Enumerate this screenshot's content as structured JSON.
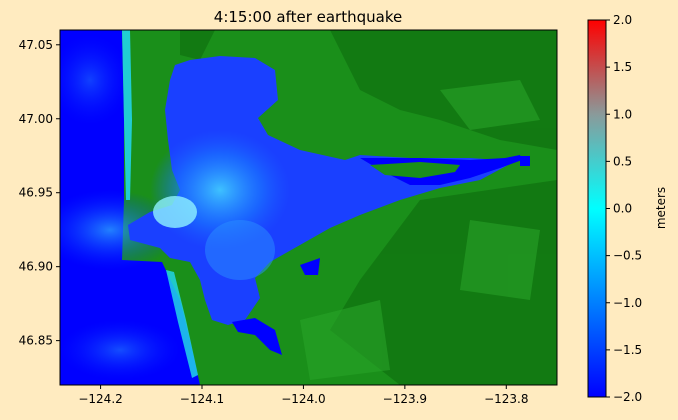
{
  "chart_data": {
    "type": "heatmap",
    "title": "4:15:00 after earthquake",
    "xlim": [
      -124.24,
      -123.75
    ],
    "ylim": [
      46.82,
      47.06
    ],
    "x_ticks": [
      -124.2,
      -124.1,
      -124.0,
      -123.9,
      -123.8
    ],
    "x_tick_labels": [
      "−124.2",
      "−124.1",
      "−124.0",
      "−123.9",
      "−123.8"
    ],
    "y_ticks": [
      46.85,
      46.9,
      46.95,
      47.0,
      47.05
    ],
    "y_tick_labels": [
      "46.85",
      "46.90",
      "46.95",
      "47.00",
      "47.05"
    ],
    "colorbar": {
      "label": "meters",
      "range": [
        -2.0,
        2.0
      ],
      "ticks": [
        -2.0,
        -1.5,
        -1.0,
        -0.5,
        0.0,
        0.5,
        1.0,
        1.5,
        2.0
      ],
      "tick_labels": [
        "−2.0",
        "−1.5",
        "−1.0",
        "−0.5",
        "0.0",
        "0.5",
        "1.0",
        "1.5",
        "2.0"
      ],
      "colors": [
        "#0000ff",
        "#00ffff",
        "#ff0000"
      ]
    },
    "grid": false,
    "colors": {
      "land": "#1a8f1a",
      "land_dark": "#0d6a0d",
      "deep_water": "#0000ff",
      "mid_water": "#1a6cff",
      "shallow_water": "#22d4e8"
    }
  }
}
